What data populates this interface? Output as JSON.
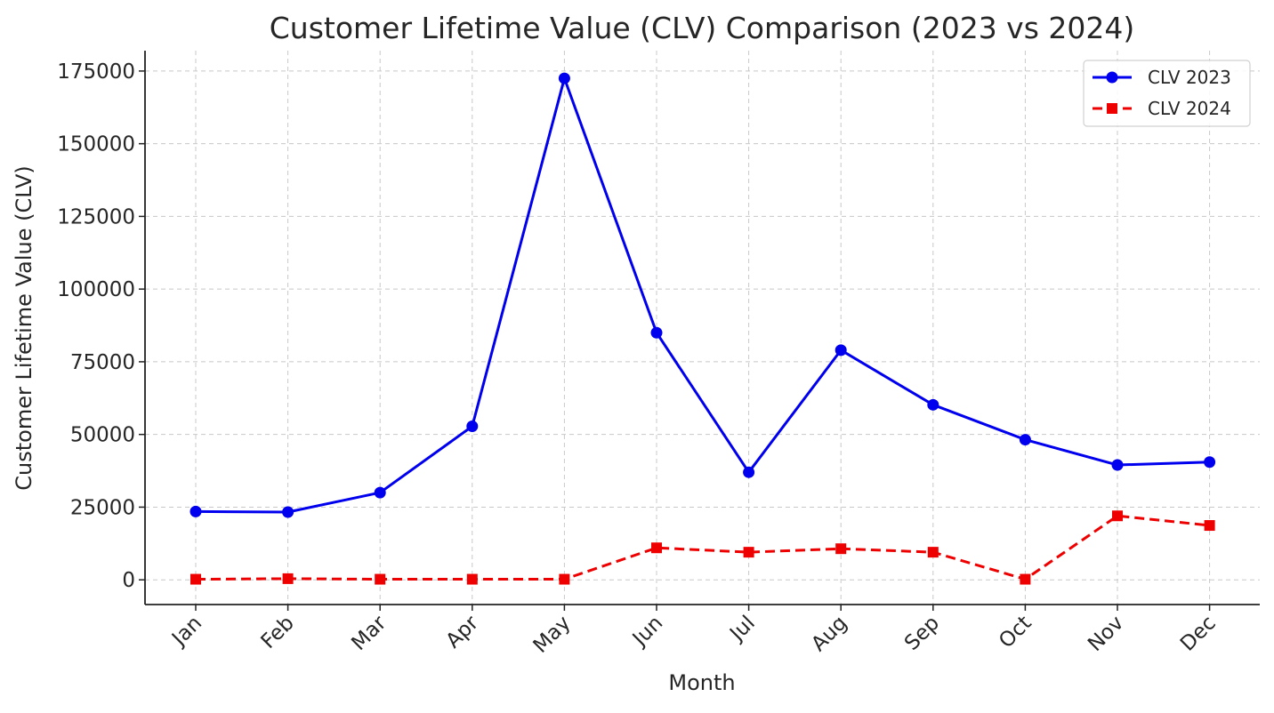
{
  "chart_data": {
    "type": "line",
    "title": "Customer Lifetime Value (CLV) Comparison (2023 vs 2024)",
    "xlabel": "Month",
    "ylabel": "Customer Lifetime Value (CLV)",
    "categories": [
      "Jan",
      "Feb",
      "Mar",
      "Apr",
      "May",
      "Jun",
      "Jul",
      "Aug",
      "Sep",
      "Oct",
      "Nov",
      "Dec"
    ],
    "yticks": [
      0,
      25000,
      50000,
      75000,
      100000,
      125000,
      150000,
      175000
    ],
    "ylim": [
      -8500,
      182000
    ],
    "grid": true,
    "legend_position": "top-right",
    "series": [
      {
        "name": "CLV 2023",
        "color": "#0000ee",
        "line_style": "solid",
        "marker": "circle",
        "values": [
          23500,
          23300,
          30000,
          52800,
          172500,
          85000,
          37000,
          79000,
          60200,
          48200,
          39500,
          40500
        ]
      },
      {
        "name": "CLV 2024",
        "color": "#ee0000",
        "line_style": "dashed",
        "marker": "square",
        "values": [
          200,
          400,
          200,
          200,
          200,
          11000,
          9500,
          10700,
          9500,
          200,
          22000,
          18700
        ]
      }
    ]
  }
}
